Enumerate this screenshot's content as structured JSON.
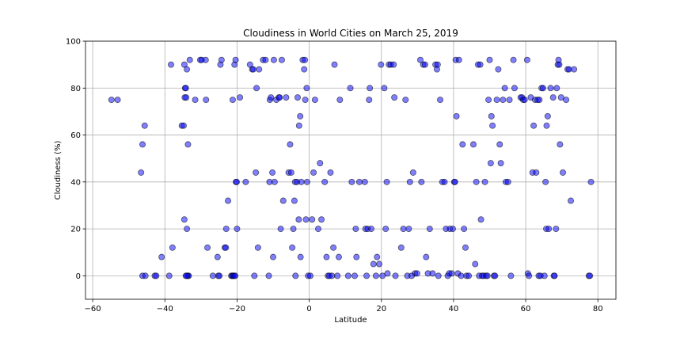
{
  "chart_data": {
    "type": "scatter",
    "title": "Cloudiness in World Cities on March 25, 2019",
    "xlabel": "Latitude",
    "ylabel": "Cloudiness (%)",
    "xlim": [
      -62,
      85
    ],
    "ylim": [
      -10,
      100
    ],
    "xticks": [
      -60,
      -40,
      -20,
      0,
      20,
      40,
      60,
      80
    ],
    "yticks": [
      0,
      20,
      40,
      60,
      80,
      100
    ],
    "grid": true,
    "point_color": "#0000ff",
    "edge_color": "#000000",
    "points": [
      [
        -54.8,
        75
      ],
      [
        -53.1,
        75
      ],
      [
        -46.6,
        44
      ],
      [
        -46.2,
        56
      ],
      [
        -45.6,
        64
      ],
      [
        -46.2,
        0
      ],
      [
        -45.4,
        0
      ],
      [
        -42.8,
        0
      ],
      [
        -42.4,
        0
      ],
      [
        -40.9,
        8
      ],
      [
        -38.8,
        0
      ],
      [
        -38.3,
        90
      ],
      [
        -37.9,
        12
      ],
      [
        -35.3,
        64
      ],
      [
        -34.8,
        64
      ],
      [
        -34.6,
        24
      ],
      [
        -34.5,
        76
      ],
      [
        -34.4,
        80
      ],
      [
        -34.2,
        80
      ],
      [
        -34.1,
        76
      ],
      [
        -34.6,
        90
      ],
      [
        -33.9,
        88
      ],
      [
        -33.6,
        0
      ],
      [
        -33.4,
        0
      ],
      [
        -33.9,
        0
      ],
      [
        -34.2,
        0
      ],
      [
        -33.9,
        20
      ],
      [
        -33.6,
        56
      ],
      [
        -33.1,
        92
      ],
      [
        -31.6,
        75
      ],
      [
        -30.2,
        92
      ],
      [
        -29.8,
        92
      ],
      [
        -28.7,
        92
      ],
      [
        -28.6,
        75
      ],
      [
        -28.2,
        12
      ],
      [
        -26.7,
        0
      ],
      [
        -25.4,
        8
      ],
      [
        -25.2,
        0
      ],
      [
        -24.9,
        0
      ],
      [
        -24.6,
        90
      ],
      [
        -24.3,
        92
      ],
      [
        -23.4,
        12
      ],
      [
        -23.1,
        12
      ],
      [
        -23.0,
        20
      ],
      [
        -22.5,
        32
      ],
      [
        -21.6,
        0
      ],
      [
        -21.3,
        0
      ],
      [
        -21.1,
        0
      ],
      [
        -20.8,
        0
      ],
      [
        -20.5,
        0
      ],
      [
        -21.2,
        75
      ],
      [
        -20.7,
        90
      ],
      [
        -20.4,
        92
      ],
      [
        -20.3,
        40
      ],
      [
        -20.1,
        40
      ],
      [
        -20.0,
        20
      ],
      [
        -19.2,
        76
      ],
      [
        -17.6,
        40
      ],
      [
        -16.4,
        90
      ],
      [
        -15.8,
        88
      ],
      [
        -15.5,
        88
      ],
      [
        -15.2,
        0
      ],
      [
        -14.8,
        44
      ],
      [
        -14.6,
        80
      ],
      [
        -14.2,
        12
      ],
      [
        -13.9,
        88
      ],
      [
        -12.8,
        92
      ],
      [
        -12.1,
        92
      ],
      [
        -11.2,
        0
      ],
      [
        -11.0,
        40
      ],
      [
        -10.9,
        75
      ],
      [
        -10.6,
        76
      ],
      [
        -10.2,
        44
      ],
      [
        -10.0,
        8
      ],
      [
        -9.8,
        92
      ],
      [
        -9.6,
        40
      ],
      [
        -9.1,
        75
      ],
      [
        -8.4,
        76
      ],
      [
        -8.2,
        76
      ],
      [
        -7.9,
        20
      ],
      [
        -7.6,
        92
      ],
      [
        -7.2,
        32
      ],
      [
        -6.4,
        76
      ],
      [
        -5.7,
        44
      ],
      [
        -5.3,
        56
      ],
      [
        -5.0,
        44
      ],
      [
        -4.7,
        12
      ],
      [
        -4.4,
        20
      ],
      [
        -4.1,
        32
      ],
      [
        -3.9,
        40
      ],
      [
        -3.8,
        0
      ],
      [
        -3.4,
        40
      ],
      [
        -3.2,
        76
      ],
      [
        -2.9,
        24
      ],
      [
        -2.8,
        64
      ],
      [
        -2.5,
        68
      ],
      [
        -2.4,
        8
      ],
      [
        -2.2,
        40
      ],
      [
        -1.8,
        92
      ],
      [
        -1.4,
        88
      ],
      [
        -1.2,
        92
      ],
      [
        -1.1,
        75
      ],
      [
        -0.9,
        24
      ],
      [
        -0.7,
        80
      ],
      [
        -0.6,
        40
      ],
      [
        -0.3,
        0
      ],
      [
        0.3,
        0
      ],
      [
        0.8,
        24
      ],
      [
        1.2,
        44
      ],
      [
        1.6,
        75
      ],
      [
        2.5,
        20
      ],
      [
        3.0,
        48
      ],
      [
        3.4,
        24
      ],
      [
        4.3,
        40
      ],
      [
        4.8,
        8
      ],
      [
        5.2,
        0
      ],
      [
        5.6,
        0
      ],
      [
        5.9,
        44
      ],
      [
        6.3,
        0
      ],
      [
        6.7,
        12
      ],
      [
        7.0,
        90
      ],
      [
        7.8,
        0
      ],
      [
        8.2,
        8
      ],
      [
        8.5,
        75
      ],
      [
        10.8,
        0
      ],
      [
        11.4,
        80
      ],
      [
        11.8,
        40
      ],
      [
        12.6,
        0
      ],
      [
        12.9,
        20
      ],
      [
        13.1,
        8
      ],
      [
        13.9,
        40
      ],
      [
        15.4,
        40
      ],
      [
        15.6,
        20
      ],
      [
        15.9,
        0
      ],
      [
        16.2,
        20
      ],
      [
        16.6,
        75
      ],
      [
        16.8,
        80
      ],
      [
        17.2,
        20
      ],
      [
        17.8,
        5
      ],
      [
        18.5,
        0
      ],
      [
        18.8,
        8
      ],
      [
        19.4,
        5
      ],
      [
        19.9,
        90
      ],
      [
        20.3,
        0
      ],
      [
        20.8,
        80
      ],
      [
        21.2,
        20
      ],
      [
        21.5,
        40
      ],
      [
        21.7,
        1
      ],
      [
        22.1,
        90
      ],
      [
        22.6,
        90
      ],
      [
        23.4,
        90
      ],
      [
        23.6,
        76
      ],
      [
        23.9,
        0
      ],
      [
        25.5,
        12
      ],
      [
        26.1,
        20
      ],
      [
        26.7,
        75
      ],
      [
        27.2,
        0
      ],
      [
        27.6,
        20
      ],
      [
        27.9,
        40
      ],
      [
        28.4,
        0
      ],
      [
        28.8,
        44
      ],
      [
        29.3,
        1
      ],
      [
        29.9,
        1
      ],
      [
        30.8,
        92
      ],
      [
        31.1,
        40
      ],
      [
        31.6,
        90
      ],
      [
        32.1,
        90
      ],
      [
        32.4,
        8
      ],
      [
        32.9,
        1
      ],
      [
        33.4,
        20
      ],
      [
        34.2,
        1
      ],
      [
        35.0,
        90
      ],
      [
        35.4,
        88
      ],
      [
        35.6,
        90
      ],
      [
        35.8,
        0
      ],
      [
        36.3,
        75
      ],
      [
        36.9,
        40
      ],
      [
        37.5,
        40
      ],
      [
        37.9,
        20
      ],
      [
        38.4,
        0
      ],
      [
        38.8,
        1
      ],
      [
        39.0,
        20
      ],
      [
        39.5,
        1
      ],
      [
        39.8,
        20
      ],
      [
        40.2,
        40
      ],
      [
        40.4,
        40
      ],
      [
        40.6,
        92
      ],
      [
        40.8,
        68
      ],
      [
        41.2,
        1
      ],
      [
        41.5,
        92
      ],
      [
        42.1,
        0
      ],
      [
        42.5,
        56
      ],
      [
        42.9,
        20
      ],
      [
        43.3,
        12
      ],
      [
        43.6,
        0
      ],
      [
        44.2,
        0
      ],
      [
        45.5,
        56
      ],
      [
        46.0,
        5
      ],
      [
        46.3,
        40
      ],
      [
        46.8,
        90
      ],
      [
        47.1,
        0
      ],
      [
        47.4,
        90
      ],
      [
        47.6,
        24
      ],
      [
        47.9,
        0
      ],
      [
        48.3,
        0
      ],
      [
        48.7,
        40
      ],
      [
        49.0,
        0
      ],
      [
        49.4,
        0
      ],
      [
        49.7,
        75
      ],
      [
        50.0,
        92
      ],
      [
        50.3,
        48
      ],
      [
        50.5,
        68
      ],
      [
        50.8,
        64
      ],
      [
        51.2,
        0
      ],
      [
        51.5,
        0
      ],
      [
        52.0,
        75
      ],
      [
        52.4,
        88
      ],
      [
        52.8,
        56
      ],
      [
        53.1,
        48
      ],
      [
        53.7,
        75
      ],
      [
        54.2,
        80
      ],
      [
        54.5,
        40
      ],
      [
        55.1,
        40
      ],
      [
        55.5,
        75
      ],
      [
        55.9,
        0
      ],
      [
        56.6,
        92
      ],
      [
        56.9,
        80
      ],
      [
        58.6,
        76
      ],
      [
        59.0,
        76
      ],
      [
        59.3,
        75
      ],
      [
        59.7,
        75
      ],
      [
        60.4,
        92
      ],
      [
        60.6,
        1
      ],
      [
        60.9,
        0
      ],
      [
        61.4,
        76
      ],
      [
        61.9,
        44
      ],
      [
        62.2,
        64
      ],
      [
        62.6,
        75
      ],
      [
        62.9,
        44
      ],
      [
        63.3,
        75
      ],
      [
        63.6,
        0
      ],
      [
        63.8,
        75
      ],
      [
        64.1,
        0
      ],
      [
        64.4,
        80
      ],
      [
        64.8,
        80
      ],
      [
        65.2,
        0
      ],
      [
        65.5,
        40
      ],
      [
        65.7,
        20
      ],
      [
        65.8,
        64
      ],
      [
        66.1,
        68
      ],
      [
        66.4,
        20
      ],
      [
        66.9,
        80
      ],
      [
        67.6,
        76
      ],
      [
        67.8,
        0
      ],
      [
        68.0,
        0
      ],
      [
        68.4,
        20
      ],
      [
        68.6,
        80
      ],
      [
        68.9,
        90
      ],
      [
        69.1,
        92
      ],
      [
        69.3,
        90
      ],
      [
        69.5,
        56
      ],
      [
        69.8,
        76
      ],
      [
        70.3,
        44
      ],
      [
        71.2,
        75
      ],
      [
        71.6,
        88
      ],
      [
        72.0,
        88
      ],
      [
        72.5,
        32
      ],
      [
        73.4,
        88
      ],
      [
        77.5,
        0
      ],
      [
        77.8,
        0
      ],
      [
        78.1,
        40
      ]
    ]
  }
}
